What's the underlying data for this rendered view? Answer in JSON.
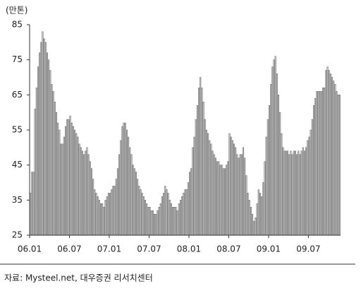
{
  "chart_data": {
    "type": "bar",
    "y_label": "(만톤)",
    "source": "자료: Mysteel.net, 대우증권 리서치센터",
    "color": "#cfcfcf",
    "edge_color": "#555555",
    "ylim": [
      25,
      85
    ],
    "yticks": [
      25,
      35,
      45,
      55,
      65,
      75,
      85
    ],
    "categories": [
      "06.01",
      null,
      null,
      null,
      null,
      null,
      null,
      null,
      null,
      null,
      null,
      null,
      null,
      null,
      null,
      null,
      null,
      null,
      null,
      null,
      null,
      null,
      null,
      null,
      null,
      null,
      "06.07",
      null,
      null,
      null,
      null,
      null,
      null,
      null,
      null,
      null,
      null,
      null,
      null,
      null,
      null,
      null,
      null,
      null,
      null,
      null,
      null,
      null,
      null,
      null,
      null,
      null,
      "07.01",
      null,
      null,
      null,
      null,
      null,
      null,
      null,
      null,
      null,
      null,
      null,
      null,
      null,
      null,
      null,
      null,
      null,
      null,
      null,
      null,
      null,
      null,
      null,
      null,
      null,
      "07.07",
      null,
      null,
      null,
      null,
      null,
      null,
      null,
      null,
      null,
      null,
      null,
      null,
      null,
      null,
      null,
      null,
      null,
      null,
      null,
      null,
      null,
      null,
      null,
      null,
      null,
      "08.01",
      null,
      null,
      null,
      null,
      null,
      null,
      null,
      null,
      null,
      null,
      null,
      null,
      null,
      null,
      null,
      null,
      null,
      null,
      null,
      null,
      null,
      null,
      null,
      null,
      null,
      "08.07",
      null,
      null,
      null,
      null,
      null,
      null,
      null,
      null,
      null,
      null,
      null,
      null,
      null,
      null,
      null,
      null,
      null,
      null,
      null,
      null,
      null,
      null,
      null,
      null,
      null,
      "09.01",
      null,
      null,
      null,
      null,
      null,
      null,
      null,
      null,
      null,
      null,
      null,
      null,
      null,
      null,
      null,
      null,
      null,
      null,
      null,
      null,
      null,
      null,
      null,
      null,
      null,
      "09.07",
      null,
      null,
      null,
      null,
      null,
      null,
      null,
      null,
      null,
      null,
      null,
      null,
      null,
      null,
      null,
      null,
      null,
      null,
      null,
      null
    ],
    "values": [
      37,
      43,
      43,
      61,
      67,
      73,
      77,
      80,
      83,
      81,
      80,
      77,
      75,
      72,
      68,
      66,
      63,
      60,
      57,
      55,
      51,
      51,
      53,
      56,
      58,
      58,
      59,
      57,
      56,
      55,
      54,
      53,
      51,
      50,
      49,
      48,
      49,
      50,
      48,
      46,
      44,
      41,
      38,
      37,
      36,
      35,
      34,
      34,
      33,
      35,
      36,
      37,
      37,
      38,
      39,
      39,
      41,
      44,
      48,
      52,
      56,
      57,
      57,
      55,
      53,
      50,
      48,
      45,
      44,
      43,
      41,
      39,
      38,
      37,
      36,
      35,
      34,
      33,
      33,
      32,
      32,
      31,
      31,
      32,
      33,
      34,
      36,
      37,
      39,
      38,
      37,
      35,
      34,
      33,
      33,
      33,
      32,
      34,
      35,
      36,
      37,
      38,
      38,
      40,
      43,
      44,
      50,
      53,
      58,
      62,
      67,
      70,
      67,
      63,
      58,
      55,
      54,
      52,
      51,
      49,
      48,
      47,
      46,
      46,
      45,
      45,
      44,
      44,
      45,
      46,
      54,
      53,
      52,
      51,
      50,
      48,
      47,
      48,
      48,
      50,
      47,
      42,
      37,
      35,
      33,
      31,
      29,
      30,
      34,
      38,
      37,
      36,
      40,
      46,
      53,
      58,
      62,
      68,
      73,
      75,
      76,
      71,
      65,
      60,
      54,
      50,
      49,
      49,
      49,
      48,
      49,
      48,
      49,
      49,
      48,
      49,
      48,
      49,
      50,
      49,
      50,
      52,
      53,
      55,
      58,
      62,
      64,
      66,
      66,
      66,
      66,
      67,
      67,
      72,
      73,
      72,
      71,
      70,
      69,
      68,
      66,
      65,
      65
    ]
  }
}
